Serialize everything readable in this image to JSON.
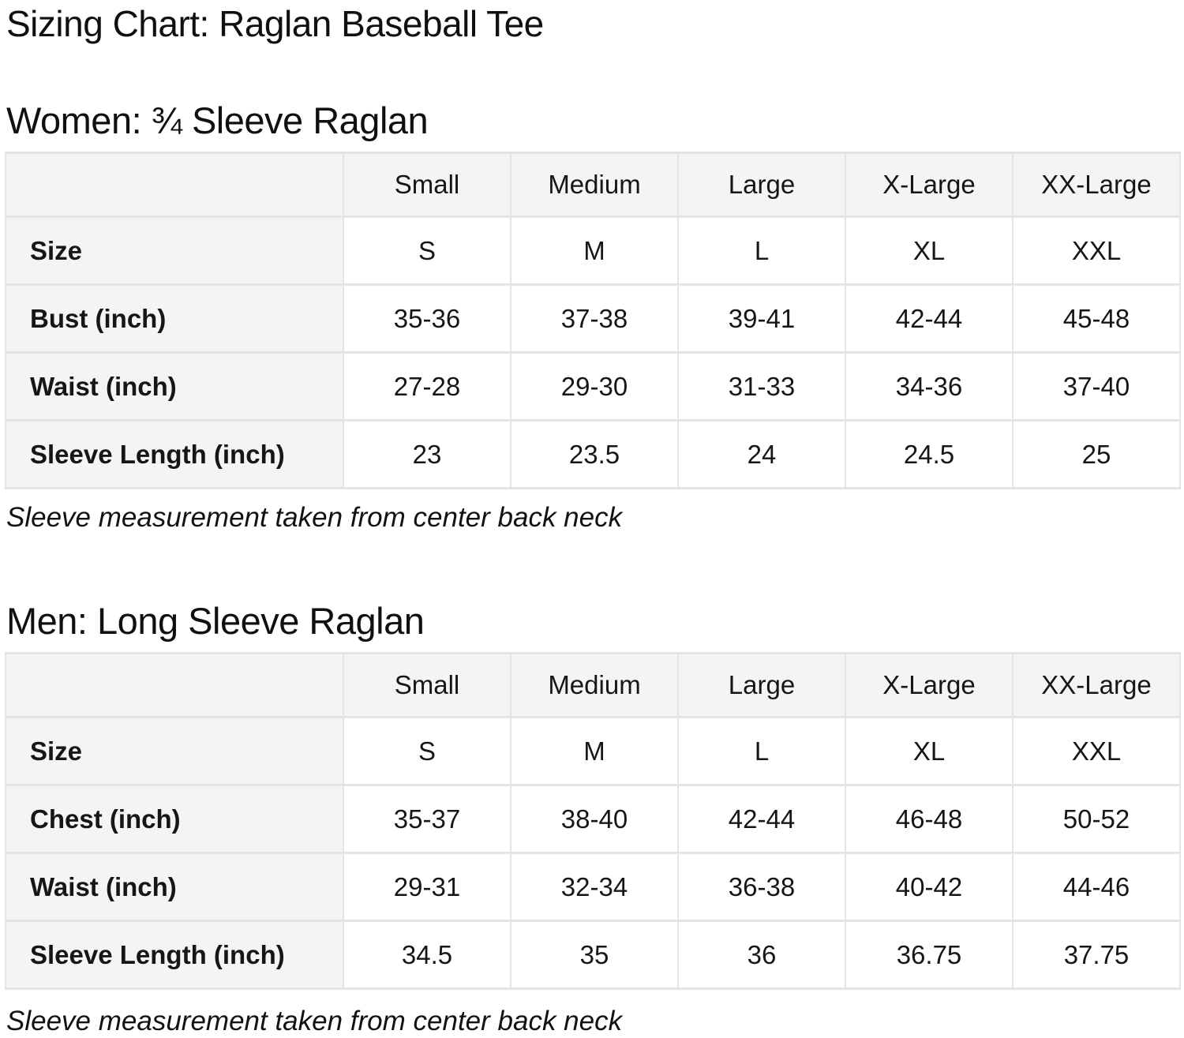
{
  "page": {
    "title": "Sizing Chart: Raglan Baseball Tee"
  },
  "sections": [
    {
      "heading": "Women: ¾ Sleeve Raglan",
      "note": "Sleeve measurement taken from center back neck",
      "table": {
        "column_headers": [
          "",
          "Small",
          "Medium",
          "Large",
          "X-Large",
          "XX-Large"
        ],
        "rows": [
          {
            "label": "Size",
            "values": [
              "S",
              "M",
              "L",
              "XL",
              "XXL"
            ]
          },
          {
            "label": "Bust (inch)",
            "values": [
              "35-36",
              "37-38",
              "39-41",
              "42-44",
              "45-48"
            ]
          },
          {
            "label": "Waist (inch)",
            "values": [
              "27-28",
              "29-30",
              "31-33",
              "34-36",
              "37-40"
            ]
          },
          {
            "label": "Sleeve Length (inch)",
            "values": [
              "23",
              "23.5",
              "24",
              "24.5",
              "25"
            ]
          }
        ]
      }
    },
    {
      "heading": "Men: Long Sleeve Raglan",
      "note": "Sleeve measurement taken from center back neck",
      "table": {
        "column_headers": [
          "",
          "Small",
          "Medium",
          "Large",
          "X-Large",
          "XX-Large"
        ],
        "rows": [
          {
            "label": "Size",
            "values": [
              "S",
              "M",
              "L",
              "XL",
              "XXL"
            ]
          },
          {
            "label": "Chest (inch)",
            "values": [
              "35-37",
              "38-40",
              "42-44",
              "46-48",
              "50-52"
            ]
          },
          {
            "label": "Waist (inch)",
            "values": [
              "29-31",
              "32-34",
              "36-38",
              "40-42",
              "44-46"
            ]
          },
          {
            "label": "Sleeve Length (inch)",
            "values": [
              "34.5",
              "35",
              "36",
              "36.75",
              "37.75"
            ]
          }
        ]
      }
    }
  ],
  "colors": {
    "header_cell_bg": "#f4f4f4",
    "cell_border": "#e4e4e4",
    "text": "#101010",
    "page_bg": "#ffffff"
  }
}
